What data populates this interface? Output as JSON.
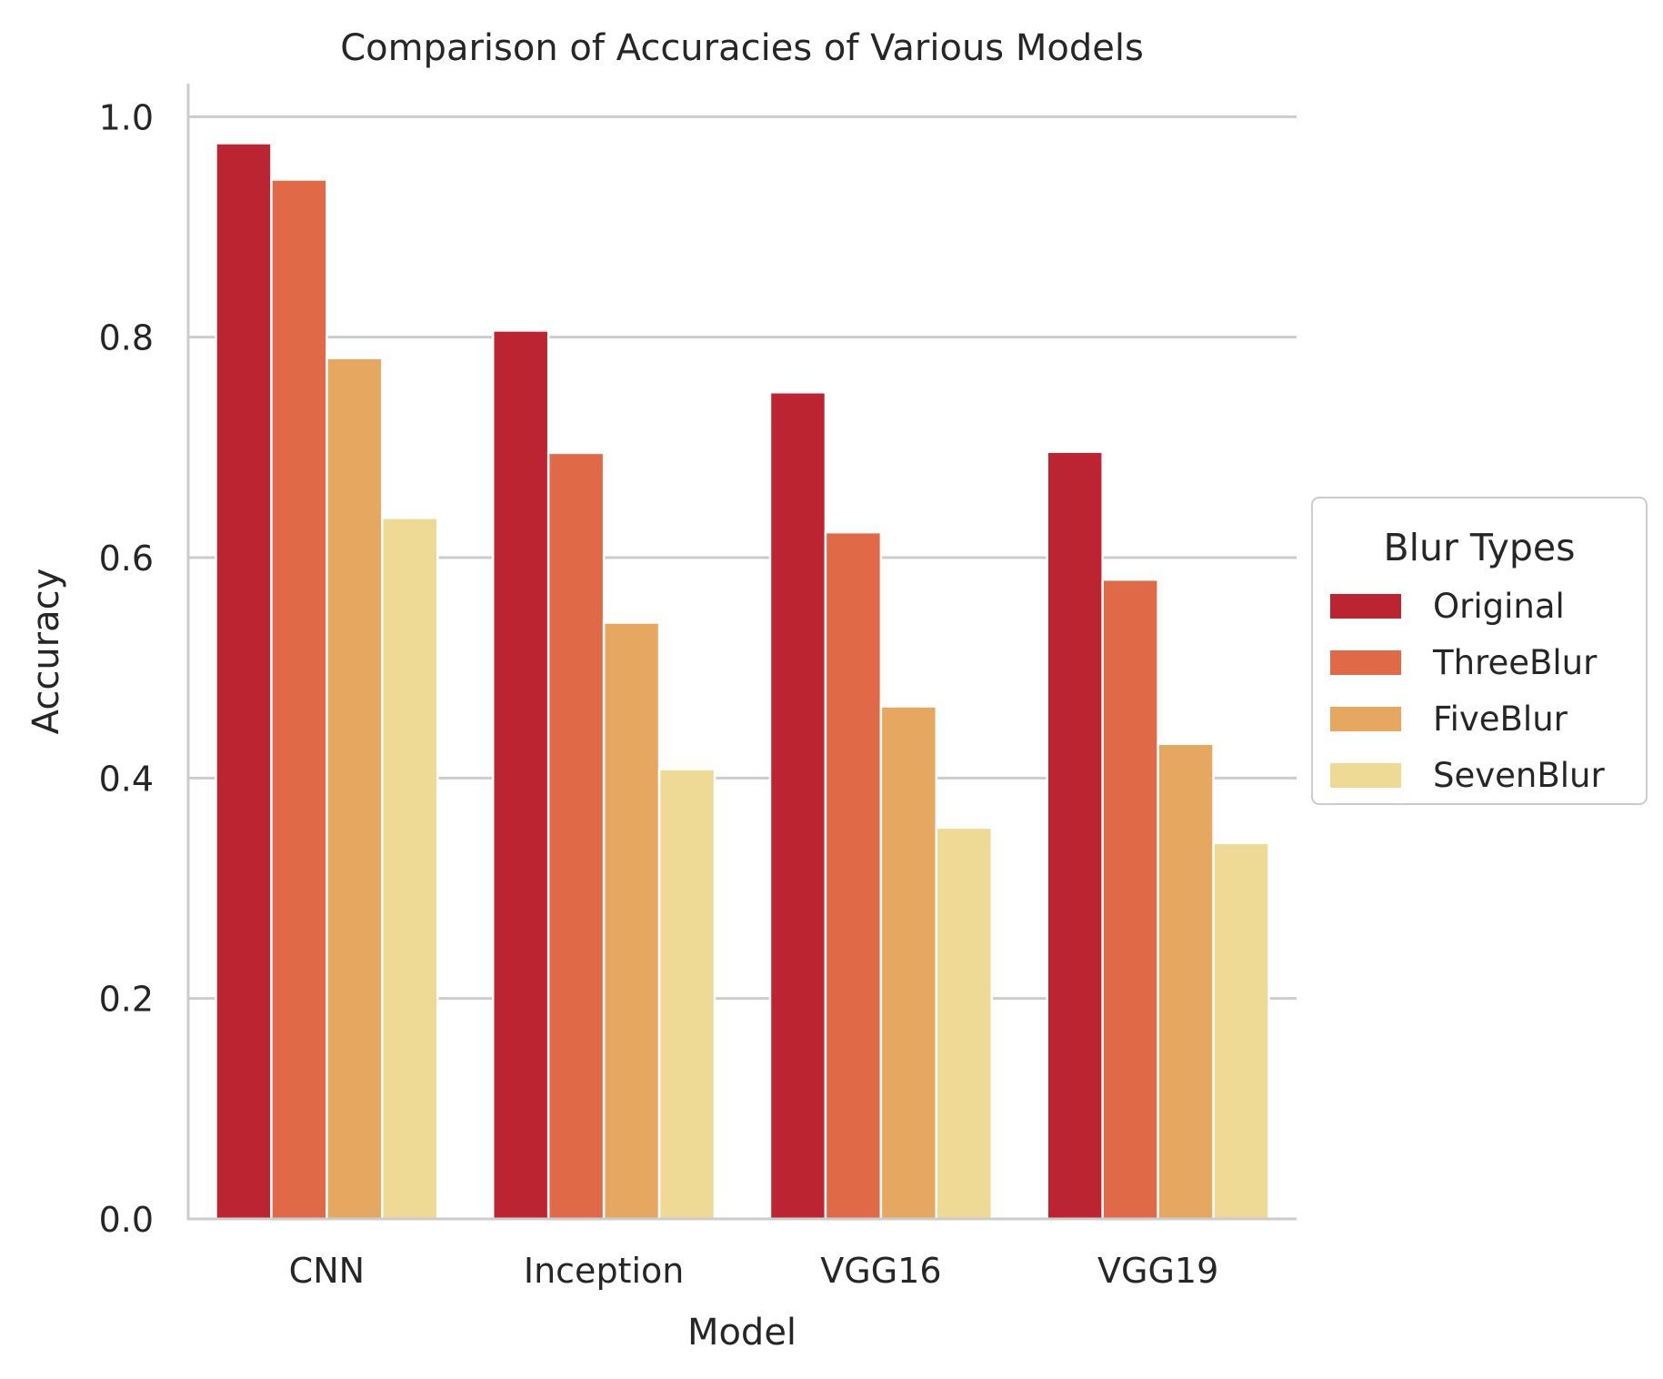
{
  "chart_data": {
    "type": "bar",
    "title": "Comparison of Accuracies of Various Models",
    "xlabel": "Model",
    "ylabel": "Accuracy",
    "categories": [
      "CNN",
      "Inception",
      "VGG16",
      "VGG19"
    ],
    "series": [
      {
        "name": "Original",
        "color": "#bd2432",
        "values": [
          0.976,
          0.806,
          0.75,
          0.696
        ]
      },
      {
        "name": "ThreeBlur",
        "color": "#e06a48",
        "values": [
          0.943,
          0.695,
          0.623,
          0.58
        ]
      },
      {
        "name": "FiveBlur",
        "color": "#e6a860",
        "values": [
          0.781,
          0.541,
          0.465,
          0.431
        ]
      },
      {
        "name": "SevenBlur",
        "color": "#eed995",
        "values": [
          0.636,
          0.408,
          0.355,
          0.341
        ]
      }
    ],
    "ylim": [
      0,
      1.03
    ],
    "yticks": [
      0.0,
      0.2,
      0.4,
      0.6,
      0.8,
      1.0
    ],
    "ytick_labels": [
      "0.0",
      "0.2",
      "0.4",
      "0.6",
      "0.8",
      "1.0"
    ],
    "grid": "horizontal",
    "legend": {
      "title": "Blur Types",
      "placement": "right, outside plot area"
    }
  }
}
